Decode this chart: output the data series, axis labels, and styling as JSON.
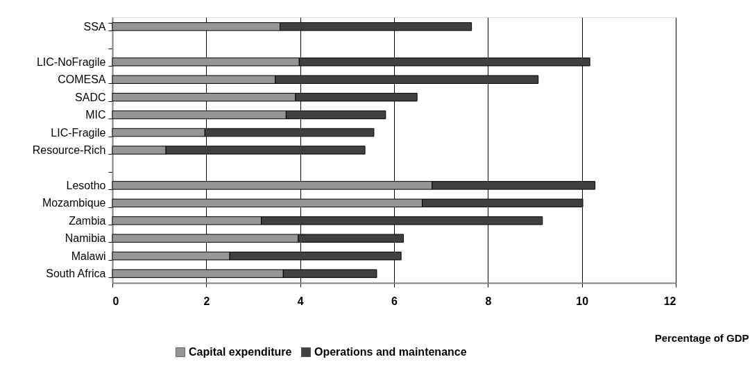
{
  "chart_data": {
    "type": "bar",
    "orientation": "horizontal",
    "stacked": true,
    "categories": [
      "SSA",
      null,
      "LIC-NoFragile",
      "COMESA",
      "SADC",
      "MIC",
      "LIC-Fragile",
      "Resource-Rich",
      null,
      "Lesotho",
      "Mozambique",
      "Zambia",
      "Namibia",
      "Malawi",
      "South Africa"
    ],
    "series": [
      {
        "name": "Capital expenditure",
        "color": "#969696",
        "values": [
          3.57,
          null,
          3.98,
          3.47,
          3.9,
          3.7,
          1.97,
          1.14,
          null,
          6.81,
          6.6,
          3.17,
          3.96,
          2.5,
          3.64
        ]
      },
      {
        "name": "Operations and maintenance",
        "color": "#404040",
        "values": [
          4.08,
          null,
          6.19,
          5.6,
          2.59,
          2.12,
          3.6,
          4.24,
          null,
          3.47,
          3.42,
          5.99,
          2.24,
          3.65,
          1.99
        ]
      }
    ],
    "xlabel": "Percentage of GDP",
    "xlim": [
      0,
      12
    ],
    "xticks": [
      0,
      2,
      4,
      6,
      8,
      10,
      12
    ],
    "grid": "x",
    "legend": "bottom"
  }
}
